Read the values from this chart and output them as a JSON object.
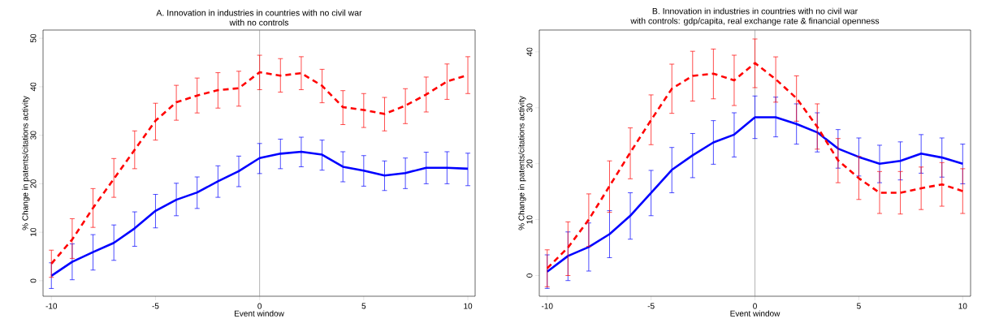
{
  "chart_data": [
    {
      "type": "line",
      "title": "A. Innovation in industries in countries with no civil war",
      "subtitle": "with no controls",
      "xlabel": "Event window",
      "ylabel": "% Change in patents/citations activity",
      "x": [
        -10,
        -9,
        -8,
        -7,
        -6,
        -5,
        -4,
        -3,
        -2,
        -1,
        0,
        1,
        2,
        3,
        4,
        5,
        6,
        7,
        8,
        9,
        10
      ],
      "xlim": [
        -10.4,
        10.35
      ],
      "ylim": [
        -3.2,
        51.7
      ],
      "xticks": [
        -10,
        -5,
        0,
        5,
        10
      ],
      "yticks": [
        0,
        10,
        20,
        30,
        40,
        50
      ],
      "ref_lines": [
        {
          "axis": "x",
          "value": 0,
          "color": "#808080"
        }
      ],
      "series": [
        {
          "color": "#0000ff",
          "line_style": "solid",
          "values": [
            1,
            3.9,
            5.9,
            7.8,
            10.8,
            14.4,
            16.7,
            18.2,
            20.5,
            22.6,
            25.3,
            26.2,
            26.6,
            26,
            23.5,
            22.7,
            21.7,
            22.2,
            23.3,
            23.3,
            23.1
          ],
          "errors": [
            [
              -1.6,
              3.7
            ],
            [
              0.2,
              7.6
            ],
            [
              2.2,
              9.5
            ],
            [
              4.2,
              11.5
            ],
            [
              7.1,
              14.2
            ],
            [
              10.9,
              17.8
            ],
            [
              13.4,
              20.1
            ],
            [
              14.9,
              21.4
            ],
            [
              17.2,
              23.7
            ],
            [
              19.4,
              25.7
            ],
            [
              22.1,
              28.3
            ],
            [
              23.1,
              29.2
            ],
            [
              23.5,
              29.6
            ],
            [
              22.8,
              29
            ],
            [
              20.4,
              26.6
            ],
            [
              19.5,
              25.8
            ],
            [
              18.6,
              24.7
            ],
            [
              19,
              25.3
            ],
            [
              20,
              26.5
            ],
            [
              20,
              26.6
            ],
            [
              19.6,
              26.3
            ]
          ]
        },
        {
          "color": "#ff0000",
          "line_style": "dashed",
          "values": [
            3.5,
            8.5,
            15,
            21,
            27,
            33,
            36.8,
            38.2,
            39.3,
            39.7,
            43,
            42.3,
            42.8,
            40.2,
            35.8,
            35.2,
            34.4,
            36.1,
            38.4,
            41.1,
            42.4
          ],
          "errors": [
            [
              0.7,
              6.3
            ],
            [
              4.6,
              12.8
            ],
            [
              11,
              19
            ],
            [
              17.2,
              25.2
            ],
            [
              23.1,
              30.9
            ],
            [
              29,
              36.6
            ],
            [
              33.1,
              40.3
            ],
            [
              34.6,
              41.8
            ],
            [
              35.6,
              42.9
            ],
            [
              36,
              43.2
            ],
            [
              39.4,
              46.5
            ],
            [
              38.9,
              45.8
            ],
            [
              39.4,
              46.2
            ],
            [
              36.7,
              43.6
            ],
            [
              32.2,
              39.2
            ],
            [
              31.6,
              38.6
            ],
            [
              30.9,
              37.8
            ],
            [
              32.4,
              39.6
            ],
            [
              34.8,
              42
            ],
            [
              37.4,
              44.7
            ],
            [
              38.6,
              46.2
            ]
          ]
        }
      ]
    },
    {
      "type": "line",
      "title": "B. Innovation in industries in countries with no civil war",
      "subtitle": "with controls: gdp/capita,  real exchange rate & financial openness",
      "xlabel": "Event window",
      "ylabel": "% Change in patents/citations activity",
      "x": [
        -10,
        -9,
        -8,
        -7,
        -6,
        -5,
        -4,
        -3,
        -2,
        -1,
        0,
        1,
        2,
        3,
        4,
        5,
        6,
        7,
        8,
        9,
        10
      ],
      "xlim": [
        -10.38,
        10.38
      ],
      "ylim": [
        -3.7,
        43.9
      ],
      "xticks": [
        -10,
        -5,
        0,
        5,
        10
      ],
      "yticks": [
        0,
        10,
        20,
        30,
        40
      ],
      "ref_lines": [
        {
          "axis": "x",
          "value": 0,
          "color": "#808080"
        }
      ],
      "series": [
        {
          "color": "#0000ff",
          "line_style": "solid",
          "values": [
            0.7,
            3.5,
            5.1,
            7.4,
            10.7,
            14.8,
            18.9,
            21.5,
            23.8,
            25.2,
            28.3,
            28.3,
            27.1,
            25.6,
            22.7,
            21.2,
            20,
            20.5,
            21.8,
            21.1,
            20
          ],
          "errors": [
            [
              -2.3,
              3.7
            ],
            [
              -0.9,
              7.8
            ],
            [
              0.8,
              9.4
            ],
            [
              3.2,
              11.6
            ],
            [
              6.5,
              14.8
            ],
            [
              10.7,
              18.8
            ],
            [
              14.8,
              22.9
            ],
            [
              17.5,
              25.4
            ],
            [
              19.9,
              27.7
            ],
            [
              21.2,
              29.1
            ],
            [
              24.5,
              32.1
            ],
            [
              24.8,
              31.9
            ],
            [
              23.5,
              30.7
            ],
            [
              22.1,
              29.1
            ],
            [
              19.2,
              26.1
            ],
            [
              17.8,
              24.6
            ],
            [
              16.6,
              23.3
            ],
            [
              17.1,
              23.9
            ],
            [
              18.3,
              25.2
            ],
            [
              17.6,
              24.6
            ],
            [
              16.4,
              23.5
            ]
          ]
        },
        {
          "color": "#ff0000",
          "line_style": "dashed",
          "values": [
            1.3,
            5,
            10,
            16,
            22,
            27.8,
            33.4,
            35.7,
            36.1,
            34.9,
            38,
            35.1,
            31.7,
            26.6,
            20.6,
            17.4,
            14.8,
            14.8,
            15.6,
            16.3,
            15.1
          ],
          "errors": [
            [
              -2,
              4.6
            ],
            [
              0,
              9.6
            ],
            [
              5.2,
              14.6
            ],
            [
              11.3,
              20.5
            ],
            [
              17.3,
              26.4
            ],
            [
              23.4,
              32.3
            ],
            [
              29,
              37.8
            ],
            [
              31.2,
              40.1
            ],
            [
              31.6,
              40.5
            ],
            [
              30.4,
              39.4
            ],
            [
              33.6,
              42.3
            ],
            [
              31,
              39.1
            ],
            [
              27.6,
              35.7
            ],
            [
              22.6,
              30.7
            ],
            [
              16.6,
              24.5
            ],
            [
              13.6,
              21.3
            ],
            [
              11.1,
              18.6
            ],
            [
              11,
              18.6
            ],
            [
              11.8,
              19.4
            ],
            [
              12.4,
              20.2
            ],
            [
              11.1,
              19.1
            ]
          ]
        }
      ]
    }
  ]
}
